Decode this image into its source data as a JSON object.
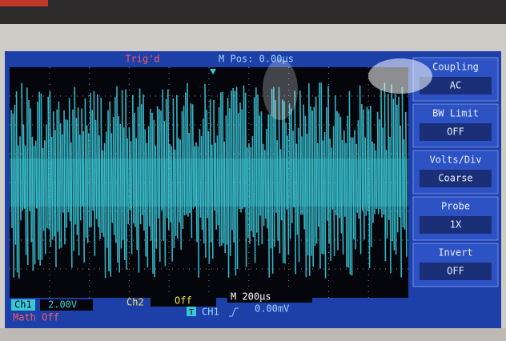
{
  "header": {
    "trigger_status": "Trig'd",
    "position": "M Pos: 0.00µs"
  },
  "menu": [
    {
      "label": "Coupling",
      "value": "AC"
    },
    {
      "label": "BW Limit",
      "value": "OFF"
    },
    {
      "label": "Volts/Div",
      "value": "Coarse"
    },
    {
      "label": "Probe",
      "value": "1X"
    },
    {
      "label": "Invert",
      "value": "OFF"
    }
  ],
  "status": {
    "ch1_label": "Ch1",
    "ch1_scale": "2.00V",
    "ch2_label": "Ch2",
    "ch2_value": "Off",
    "timebase": "M 200µs",
    "math": "Math Off",
    "trigger_icon": "T",
    "trigger_source": "CH1",
    "trigger_level": "0.00mV"
  }
}
